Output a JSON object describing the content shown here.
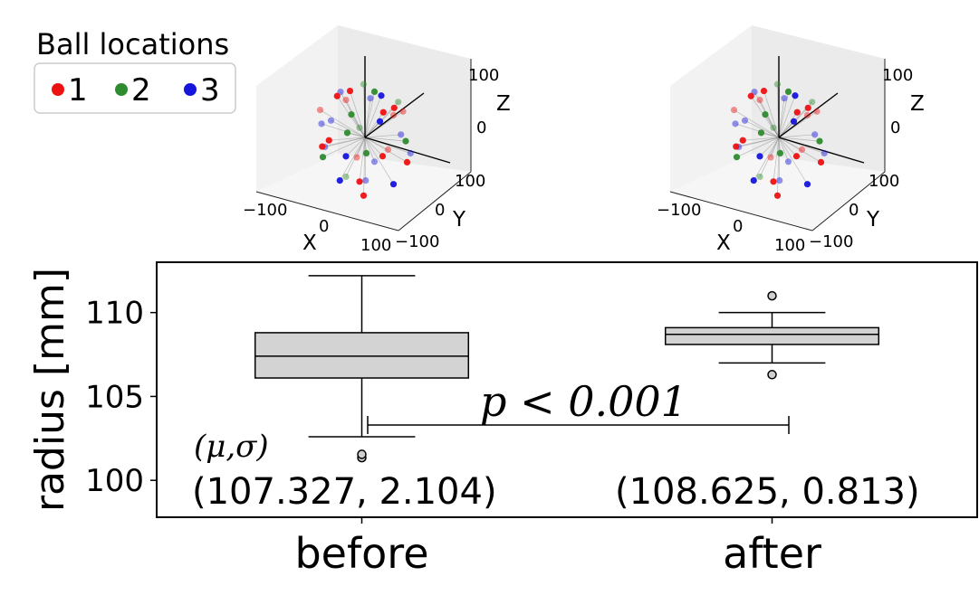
{
  "figure": {
    "legend": {
      "title": "Ball locations",
      "entries": [
        {
          "label": "1",
          "color": "#ee1111"
        },
        {
          "label": "2",
          "color": "#2e8b2e"
        },
        {
          "label": "3",
          "color": "#1515dd"
        }
      ]
    },
    "scatter_panels": [
      {
        "id": "before",
        "axis_labels": {
          "x": "X",
          "y": "Y",
          "z": "Z"
        },
        "x_ticks": [
          "−100",
          "0",
          "100"
        ],
        "y_ticks": [
          "−100",
          "0",
          "100"
        ],
        "z_ticks": [
          "0",
          "100"
        ]
      },
      {
        "id": "after",
        "axis_labels": {
          "x": "X",
          "y": "Y",
          "z": "Z"
        },
        "x_ticks": [
          "−100",
          "0",
          "100"
        ],
        "y_ticks": [
          "−100",
          "0",
          "100"
        ],
        "z_ticks": [
          "0",
          "100"
        ]
      }
    ],
    "annotation": {
      "stat_header": "(μ,σ)",
      "p_value": "p < 0.001",
      "before_stats": "(107.327, 2.104)",
      "after_stats": "(108.625, 0.813)"
    }
  },
  "chart_data": [
    {
      "type": "box",
      "ylabel": "radius [mm]",
      "ylim": [
        97.8,
        113.0
      ],
      "yticks": [
        100,
        105,
        110
      ],
      "categories": [
        "before",
        "after"
      ],
      "box_color": "#d3d3d3",
      "boxes": [
        {
          "name": "before",
          "whislo": 102.6,
          "q1": 106.1,
          "med": 107.4,
          "q3": 108.8,
          "whishi": 112.2,
          "fliers": [
            101.35,
            101.55
          ]
        },
        {
          "name": "after",
          "whislo": 107.0,
          "q1": 108.1,
          "med": 108.7,
          "q3": 109.1,
          "whishi": 110.0,
          "fliers": [
            106.3,
            111.0
          ]
        }
      ]
    },
    {
      "type": "scatter",
      "name": "before",
      "points": [
        {
          "x": -55,
          "y": -20,
          "z": 85,
          "g": 1
        },
        {
          "x": -30,
          "y": -10,
          "z": 95,
          "g": 1
        },
        {
          "x": 5,
          "y": 60,
          "z": 80,
          "g": 1
        },
        {
          "x": 45,
          "y": 40,
          "z": 70,
          "g": 1
        },
        {
          "x": 80,
          "y": 20,
          "z": 45,
          "g": 1
        },
        {
          "x": -95,
          "y": 10,
          "z": 20,
          "g": 1
        },
        {
          "x": -85,
          "y": -30,
          "z": -15,
          "g": 1
        },
        {
          "x": 10,
          "y": -85,
          "z": 30,
          "g": 1
        },
        {
          "x": 70,
          "y": -20,
          "z": -50,
          "g": 1
        },
        {
          "x": -30,
          "y": 40,
          "z": -90,
          "g": 1
        },
        {
          "x": 50,
          "y": 80,
          "z": -20,
          "g": 1
        },
        {
          "x": -20,
          "y": 95,
          "z": 15,
          "g": 1
        },
        {
          "x": 90,
          "y": -30,
          "z": 10,
          "g": 1
        },
        {
          "x": -60,
          "y": 70,
          "z": -40,
          "g": 1
        },
        {
          "x": 20,
          "y": -60,
          "z": -75,
          "g": 1
        },
        {
          "x": -70,
          "y": -60,
          "z": 40,
          "g": 1
        },
        {
          "x": -40,
          "y": 10,
          "z": 60,
          "g": 2
        },
        {
          "x": 30,
          "y": -50,
          "z": 75,
          "g": 2
        },
        {
          "x": -70,
          "y": 40,
          "z": 45,
          "g": 2
        },
        {
          "x": 60,
          "y": 60,
          "z": 10,
          "g": 2
        },
        {
          "x": -90,
          "y": -20,
          "z": -30,
          "g": 2
        },
        {
          "x": 40,
          "y": -80,
          "z": -30,
          "g": 2
        },
        {
          "x": -20,
          "y": -40,
          "z": -95,
          "g": 2
        },
        {
          "x": 75,
          "y": 10,
          "z": 60,
          "g": 2
        },
        {
          "x": -50,
          "y": 80,
          "z": 20,
          "g": 2
        },
        {
          "x": 10,
          "y": 20,
          "z": 100,
          "g": 2
        },
        {
          "x": -80,
          "y": 50,
          "z": 5,
          "g": 3
        },
        {
          "x": -60,
          "y": -70,
          "z": 5,
          "g": 3
        },
        {
          "x": 20,
          "y": 30,
          "z": 95,
          "g": 3
        },
        {
          "x": 60,
          "y": -70,
          "z": 30,
          "g": 3
        },
        {
          "x": -20,
          "y": -95,
          "z": -10,
          "g": 3
        },
        {
          "x": 85,
          "y": 40,
          "z": -30,
          "g": 3
        },
        {
          "x": -75,
          "y": 20,
          "z": -60,
          "g": 3
        },
        {
          "x": 30,
          "y": 60,
          "z": -70,
          "g": 3
        },
        {
          "x": -40,
          "y": -30,
          "z": 85,
          "g": 3
        },
        {
          "x": 50,
          "y": -40,
          "z": -80,
          "g": 3
        },
        {
          "x": -10,
          "y": 70,
          "z": 70,
          "g": 3
        },
        {
          "x": 95,
          "y": -10,
          "z": -20,
          "g": 3
        },
        {
          "x": -45,
          "y": -80,
          "z": -50,
          "g": 3
        },
        {
          "x": 15,
          "y": -20,
          "z": -100,
          "g": 3
        }
      ]
    },
    {
      "type": "scatter",
      "name": "after",
      "points": [
        {
          "x": -55,
          "y": -20,
          "z": 85,
          "g": 1
        },
        {
          "x": -30,
          "y": -10,
          "z": 95,
          "g": 1
        },
        {
          "x": 5,
          "y": 60,
          "z": 80,
          "g": 1
        },
        {
          "x": 45,
          "y": 40,
          "z": 70,
          "g": 1
        },
        {
          "x": 80,
          "y": 20,
          "z": 45,
          "g": 1
        },
        {
          "x": -95,
          "y": 10,
          "z": 20,
          "g": 1
        },
        {
          "x": -85,
          "y": -30,
          "z": -15,
          "g": 1
        },
        {
          "x": 10,
          "y": -85,
          "z": 30,
          "g": 1
        },
        {
          "x": 70,
          "y": -20,
          "z": -50,
          "g": 1
        },
        {
          "x": -30,
          "y": 40,
          "z": -90,
          "g": 1
        },
        {
          "x": 50,
          "y": 80,
          "z": -20,
          "g": 1
        },
        {
          "x": -20,
          "y": 95,
          "z": 15,
          "g": 1
        },
        {
          "x": 90,
          "y": -30,
          "z": 10,
          "g": 1
        },
        {
          "x": -60,
          "y": 70,
          "z": -40,
          "g": 1
        },
        {
          "x": 20,
          "y": -60,
          "z": -75,
          "g": 1
        },
        {
          "x": -70,
          "y": -60,
          "z": 40,
          "g": 1
        },
        {
          "x": -40,
          "y": 10,
          "z": 60,
          "g": 2
        },
        {
          "x": 30,
          "y": -50,
          "z": 75,
          "g": 2
        },
        {
          "x": -70,
          "y": 40,
          "z": 45,
          "g": 2
        },
        {
          "x": 60,
          "y": 60,
          "z": 10,
          "g": 2
        },
        {
          "x": -90,
          "y": -20,
          "z": -30,
          "g": 2
        },
        {
          "x": 40,
          "y": -80,
          "z": -30,
          "g": 2
        },
        {
          "x": -20,
          "y": -40,
          "z": -95,
          "g": 2
        },
        {
          "x": 75,
          "y": 10,
          "z": 60,
          "g": 2
        },
        {
          "x": -50,
          "y": 80,
          "z": 20,
          "g": 2
        },
        {
          "x": 10,
          "y": 20,
          "z": 100,
          "g": 2
        },
        {
          "x": -80,
          "y": 50,
          "z": 5,
          "g": 3
        },
        {
          "x": -60,
          "y": -70,
          "z": 5,
          "g": 3
        },
        {
          "x": 20,
          "y": 30,
          "z": 95,
          "g": 3
        },
        {
          "x": 60,
          "y": -70,
          "z": 30,
          "g": 3
        },
        {
          "x": -20,
          "y": -95,
          "z": -10,
          "g": 3
        },
        {
          "x": 85,
          "y": 40,
          "z": -30,
          "g": 3
        },
        {
          "x": -75,
          "y": 20,
          "z": -60,
          "g": 3
        },
        {
          "x": 30,
          "y": 60,
          "z": -70,
          "g": 3
        },
        {
          "x": -40,
          "y": -30,
          "z": 85,
          "g": 3
        },
        {
          "x": 50,
          "y": -40,
          "z": -80,
          "g": 3
        },
        {
          "x": -10,
          "y": 70,
          "z": 70,
          "g": 3
        },
        {
          "x": 95,
          "y": -10,
          "z": -20,
          "g": 3
        },
        {
          "x": -45,
          "y": -80,
          "z": -50,
          "g": 3
        },
        {
          "x": 15,
          "y": -20,
          "z": -100,
          "g": 3
        }
      ]
    }
  ]
}
